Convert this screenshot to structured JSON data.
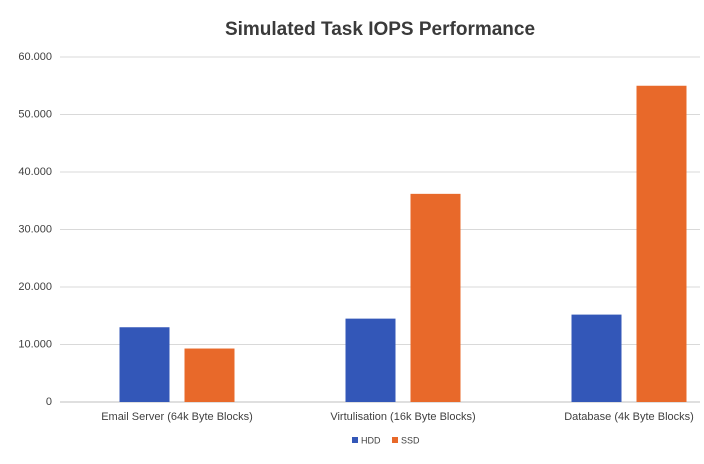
{
  "chart_data": {
    "type": "bar",
    "title": "Simulated Task IOPS Performance",
    "categories": [
      "Email Server (64k Byte Blocks)",
      "Virtulisation (16k Byte Blocks)",
      "Database (4k Byte Blocks)"
    ],
    "series": [
      {
        "name": "HDD",
        "color": "#3357b8",
        "values": [
          13000,
          14500,
          15200
        ]
      },
      {
        "name": "SSD",
        "color": "#e8692a",
        "values": [
          9300,
          36200,
          55000
        ]
      }
    ],
    "ylim": [
      0,
      60000
    ],
    "yticks": [
      0,
      {
        "value": 10000,
        "label": "10.000"
      },
      {
        "value": 20000,
        "label": "20.000"
      },
      {
        "value": 30000,
        "label": "30.000"
      },
      {
        "value": 40000,
        "label": "40.000"
      },
      {
        "value": 50000,
        "label": "50.000"
      },
      {
        "value": 60000,
        "label": "60.000"
      }
    ],
    "grid": true,
    "legend": "bottom"
  }
}
